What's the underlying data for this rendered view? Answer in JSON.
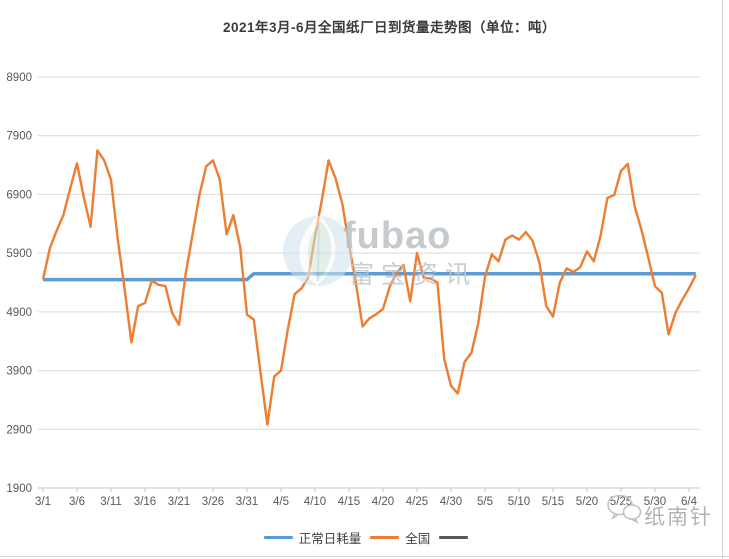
{
  "title": "2021年3月-6月全国纸厂日到货量走势图（单位：吨）",
  "legend": {
    "items": [
      {
        "label": "正常日耗量",
        "color": "#5B9BD5"
      },
      {
        "label": "全国",
        "color": "#ED7D31"
      },
      {
        "label": "",
        "color": "#595959"
      }
    ]
  },
  "watermark_center": {
    "brand": "fubao",
    "brand_cn": "富宝资讯"
  },
  "watermark_corner": {
    "label": "纸南针"
  },
  "chart_data": {
    "type": "line",
    "title": "2021年3月-6月全国纸厂日到货量走势图（单位：吨）",
    "unit": "吨",
    "grid": true,
    "legend_position": "bottom",
    "ylim": [
      1900,
      8900
    ],
    "y_ticks": [
      8900,
      7900,
      6900,
      5900,
      4900,
      3900,
      2900,
      1900
    ],
    "x_tick_labels": [
      "3/1",
      "3/6",
      "3/11",
      "3/16",
      "3/21",
      "3/26",
      "3/31",
      "4/5",
      "4/10",
      "4/15",
      "4/20",
      "4/25",
      "4/30",
      "5/5",
      "5/10",
      "5/15",
      "5/20",
      "5/25",
      "5/30",
      "6/4"
    ],
    "x_tick_interval_days": 5,
    "dates": [
      "3/1",
      "3/2",
      "3/3",
      "3/4",
      "3/5",
      "3/6",
      "3/7",
      "3/8",
      "3/9",
      "3/10",
      "3/11",
      "3/12",
      "3/13",
      "3/14",
      "3/15",
      "3/16",
      "3/17",
      "3/18",
      "3/19",
      "3/20",
      "3/21",
      "3/22",
      "3/23",
      "3/24",
      "3/25",
      "3/26",
      "3/27",
      "3/28",
      "3/29",
      "3/30",
      "3/31",
      "4/1",
      "4/2",
      "4/3",
      "4/4",
      "4/5",
      "4/6",
      "4/7",
      "4/8",
      "4/9",
      "4/10",
      "4/11",
      "4/12",
      "4/13",
      "4/14",
      "4/15",
      "4/16",
      "4/17",
      "4/18",
      "4/19",
      "4/20",
      "4/21",
      "4/22",
      "4/23",
      "4/24",
      "4/25",
      "4/26",
      "4/27",
      "4/28",
      "4/29",
      "4/30",
      "5/1",
      "5/2",
      "5/3",
      "5/4",
      "5/5",
      "5/6",
      "5/7",
      "5/8",
      "5/9",
      "5/10",
      "5/11",
      "5/12",
      "5/13",
      "5/14",
      "5/15",
      "5/16",
      "5/17",
      "5/18",
      "5/19",
      "5/20",
      "5/21",
      "5/22",
      "5/23",
      "5/24",
      "5/25",
      "5/26",
      "5/27",
      "5/28",
      "5/29",
      "5/30",
      "5/31",
      "6/1",
      "6/2",
      "6/3",
      "6/4",
      "6/5"
    ],
    "series": [
      {
        "name": "正常日耗量",
        "color": "#5B9BD5",
        "type": "step-constant",
        "segments": [
          {
            "from": "3/1",
            "to": "3/31",
            "value": 5450
          },
          {
            "from": "4/1",
            "to": "6/5",
            "value": 5550
          }
        ]
      },
      {
        "name": "全国",
        "color": "#ED7D31",
        "values": [
          5450,
          5980,
          6280,
          6550,
          7000,
          7430,
          6850,
          6350,
          7650,
          7480,
          7150,
          6130,
          5290,
          4380,
          5000,
          5050,
          5430,
          5360,
          5340,
          4880,
          4680,
          5560,
          6220,
          6890,
          7380,
          7480,
          7150,
          6220,
          6550,
          6000,
          4850,
          4770,
          3850,
          2980,
          3800,
          3900,
          4600,
          5200,
          5300,
          5480,
          6190,
          6800,
          7480,
          7180,
          6750,
          6050,
          5400,
          4650,
          4790,
          4860,
          4950,
          5330,
          5560,
          5700,
          5080,
          5900,
          5480,
          5470,
          5400,
          4100,
          3640,
          3510,
          4050,
          4200,
          4700,
          5500,
          5880,
          5760,
          6130,
          6200,
          6130,
          6260,
          6110,
          5740,
          5000,
          4820,
          5400,
          5640,
          5580,
          5660,
          5930,
          5760,
          6200,
          6840,
          6890,
          7300,
          7420,
          6700,
          6300,
          5830,
          5335,
          5225,
          4515,
          4880,
          5105,
          5300,
          5530
        ]
      }
    ]
  }
}
